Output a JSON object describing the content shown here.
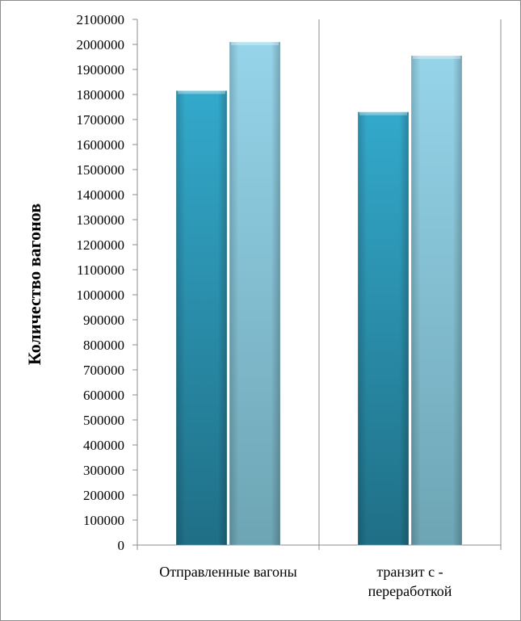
{
  "chart_data": {
    "type": "bar",
    "ylabel": "Количество  вагонов",
    "xlabel": "",
    "ylim": [
      0,
      2100000
    ],
    "y_ticks": [
      0,
      100000,
      200000,
      300000,
      400000,
      500000,
      600000,
      700000,
      800000,
      900000,
      1000000,
      1100000,
      1200000,
      1300000,
      1400000,
      1500000,
      1600000,
      1700000,
      1800000,
      1900000,
      2000000,
      2100000
    ],
    "grid": {
      "horizontal": false,
      "vertical": true
    },
    "legend": "none",
    "categories": [
      [
        "Отправленные вагоны"
      ],
      [
        "транзит с -",
        "переработкой"
      ]
    ],
    "series": [
      {
        "values": [
          1815000,
          1730000
        ],
        "color": "#2b93ae"
      },
      {
        "values": [
          2010000,
          1955000
        ],
        "color": "#8ecfe3"
      }
    ]
  }
}
